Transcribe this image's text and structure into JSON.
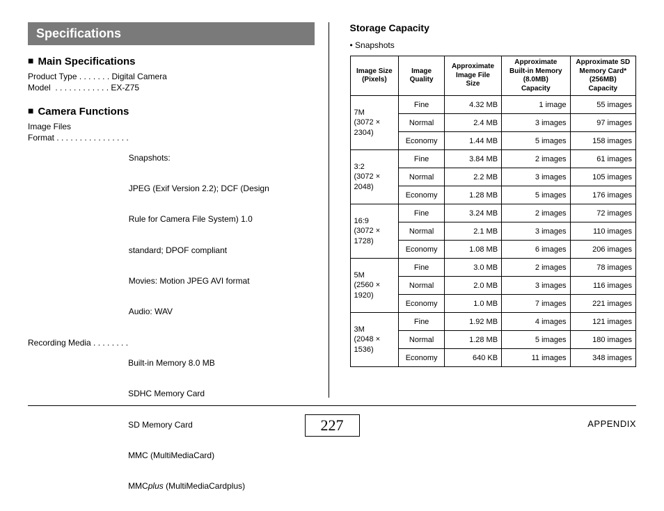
{
  "title": "Specifications",
  "main_spec_head": "Main Specifications",
  "product_type_line": "Product Type . . . . . . . Digital Camera",
  "model_line": "Model  . . . . . . . . . . . . EX-Z75",
  "cam_func_head": "Camera Functions",
  "image_files_label": "Image Files",
  "format_label": "Format . . . . . . . . . . . . . . . .",
  "format_lines": [
    "Snapshots:",
    "JPEG (Exif Version 2.2); DCF (Design",
    "Rule for Camera File System) 1.0",
    "standard; DPOF compliant",
    "Movies: Motion JPEG AVI format",
    "Audio: WAV"
  ],
  "recmedia_label": "Recording Media . . . . . . . .",
  "recmedia_lines": [
    "Built-in Memory 8.0 MB",
    "SDHC Memory Card",
    "SD Memory Card",
    "MMC (MultiMediaCard)"
  ],
  "recmedia_last_a": "MMC",
  "recmedia_last_b": "plus",
  "recmedia_last_c": " (MultiMediaCardplus)",
  "storage_title": "Storage Capacity",
  "snapshots_bullet": "•  Snapshots",
  "headers": {
    "h1": "Image Size\n(Pixels)",
    "h2": "Image\nQuality",
    "h3": "Approximate\nImage File\nSize",
    "h4": "Approximate\nBuilt-in Memory\n(8.0MB)\nCapacity",
    "h5": "Approximate SD\nMemory Card*\n(256MB)\nCapacity"
  },
  "groups": [
    {
      "size": "7M\n(3072 ×\n2304)",
      "rows": [
        {
          "q": "Fine",
          "f": "4.32 MB",
          "b": "1 image",
          "s": "55 images"
        },
        {
          "q": "Normal",
          "f": "2.4 MB",
          "b": "3 images",
          "s": "97 images"
        },
        {
          "q": "Economy",
          "f": "1.44 MB",
          "b": "5 images",
          "s": "158 images"
        }
      ]
    },
    {
      "size": "3:2\n(3072 ×\n2048)",
      "rows": [
        {
          "q": "Fine",
          "f": "3.84 MB",
          "b": "2 images",
          "s": "61 images"
        },
        {
          "q": "Normal",
          "f": "2.2 MB",
          "b": "3 images",
          "s": "105 images"
        },
        {
          "q": "Economy",
          "f": "1.28 MB",
          "b": "5 images",
          "s": "176 images"
        }
      ]
    },
    {
      "size": "16:9\n(3072 ×\n1728)",
      "rows": [
        {
          "q": "Fine",
          "f": "3.24 MB",
          "b": "2 images",
          "s": "72 images"
        },
        {
          "q": "Normal",
          "f": "2.1 MB",
          "b": "3 images",
          "s": "110 images"
        },
        {
          "q": "Economy",
          "f": "1.08 MB",
          "b": "6 images",
          "s": "206 images"
        }
      ]
    },
    {
      "size": "5M\n(2560 ×\n1920)",
      "rows": [
        {
          "q": "Fine",
          "f": "3.0 MB",
          "b": "2 images",
          "s": "78 images"
        },
        {
          "q": "Normal",
          "f": "2.0 MB",
          "b": "3 images",
          "s": "116 images"
        },
        {
          "q": "Economy",
          "f": "1.0 MB",
          "b": "7 images",
          "s": "221 images"
        }
      ]
    },
    {
      "size": "3M\n(2048 ×\n1536)",
      "rows": [
        {
          "q": "Fine",
          "f": "1.92 MB",
          "b": "4 images",
          "s": "121 images"
        },
        {
          "q": "Normal",
          "f": "1.28 MB",
          "b": "5 images",
          "s": "180 images"
        },
        {
          "q": "Economy",
          "f": "640 KB",
          "b": "11 images",
          "s": "348 images"
        }
      ]
    }
  ],
  "page_number": "227",
  "appendix": "APPENDIX"
}
